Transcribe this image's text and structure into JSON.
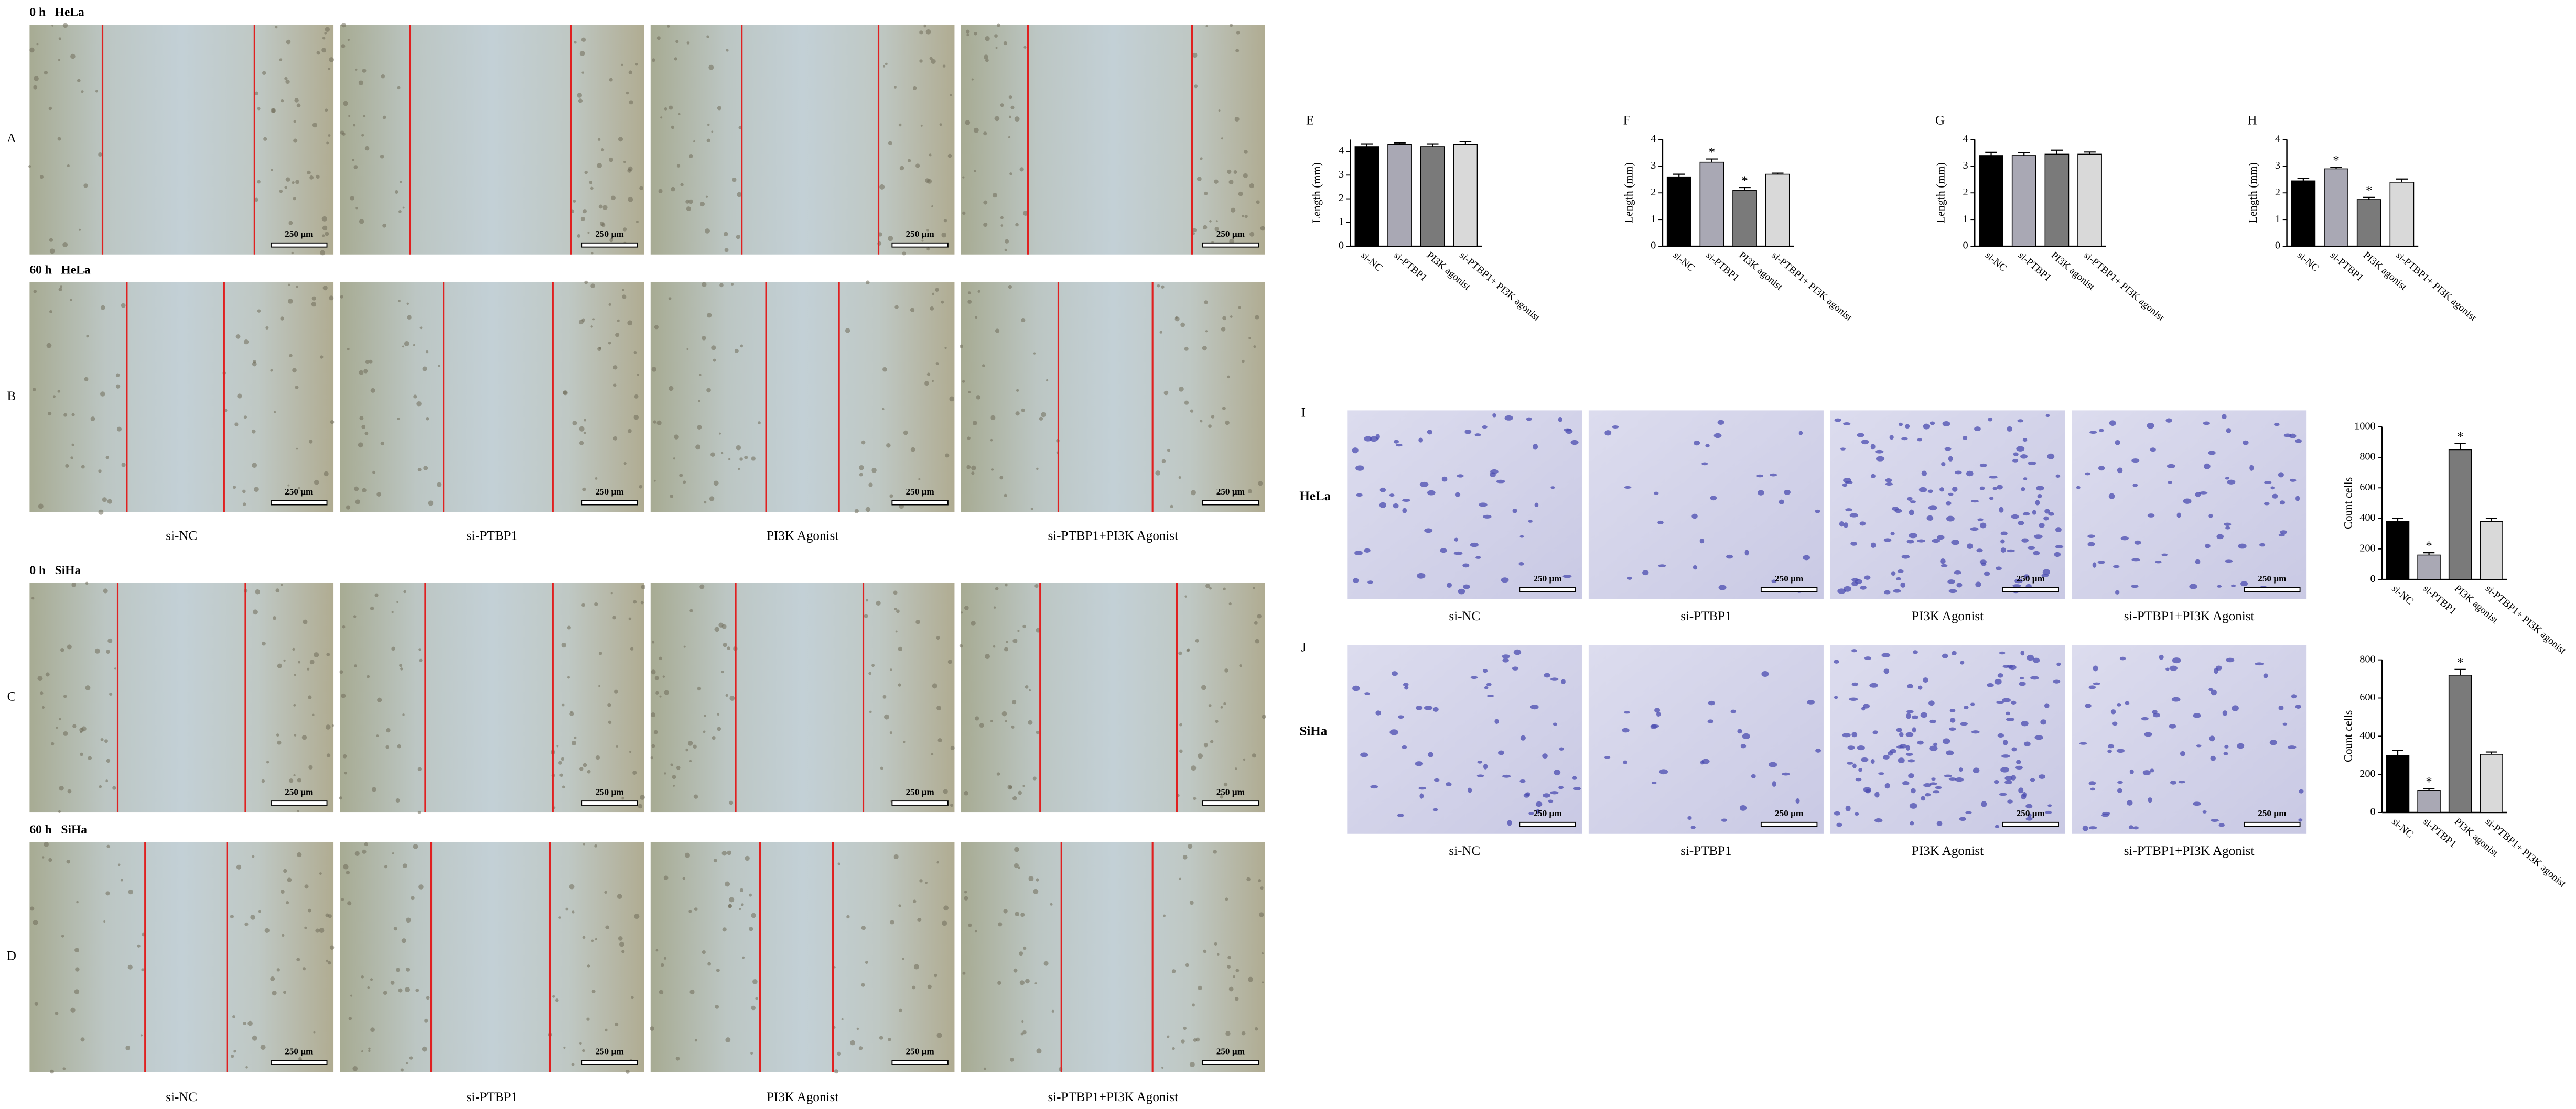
{
  "wound_healing": {
    "rows": [
      {
        "letter": "A",
        "title": "0 h   HeLa"
      },
      {
        "letter": "B",
        "title": "60 h   HeLa"
      },
      {
        "letter": "C",
        "title": "0 h   SiHa"
      },
      {
        "letter": "D",
        "title": "60 h   SiHa"
      }
    ],
    "conditions": [
      "si-NC",
      "si-PTBP1",
      "PI3K Agonist",
      "si-PTBP1+PI3K Agonist"
    ]
  },
  "transwell": {
    "rows": [
      {
        "letter": "I",
        "cell_line": "HeLa"
      },
      {
        "letter": "J",
        "cell_line": "SiHa"
      }
    ],
    "conditions": [
      "si-NC",
      "si-PTBP1",
      "PI3K Agonist",
      "si-PTBP1+PI3K Agonist"
    ]
  },
  "scale_bar": "250 μm",
  "chart_data": [
    {
      "type": "bar",
      "label": "E",
      "y_label": "Length (mm)",
      "categories": [
        "si-NC",
        "si-PTBP1",
        "PI3K agonist",
        "si-PTBP1+ PI3K agonist"
      ],
      "values": [
        4.2,
        4.3,
        4.2,
        4.3
      ],
      "errors": [
        0.12,
        0.06,
        0.12,
        0.1
      ],
      "significance": [
        null,
        null,
        null,
        null
      ],
      "colors": [
        "#000000",
        "#a9a8b4",
        "#7a7a7a",
        "#d9d9d9"
      ],
      "ylim": [
        0,
        4.5
      ],
      "yticks": [
        0,
        1,
        2,
        3,
        4
      ]
    },
    {
      "type": "bar",
      "label": "F",
      "y_label": "Length (mm)",
      "categories": [
        "si-NC",
        "si-PTBP1",
        "PI3K agonist",
        "si-PTBP1+ PI3K agonist"
      ],
      "values": [
        2.6,
        3.15,
        2.1,
        2.7
      ],
      "errors": [
        0.1,
        0.12,
        0.1,
        0.04
      ],
      "significance": [
        null,
        "*",
        "*",
        null
      ],
      "colors": [
        "#000000",
        "#a9a8b4",
        "#7a7a7a",
        "#d9d9d9"
      ],
      "ylim": [
        0,
        4
      ],
      "yticks": [
        0,
        1,
        2,
        3,
        4
      ]
    },
    {
      "type": "bar",
      "label": "G",
      "y_label": "Length (mm)",
      "categories": [
        "si-NC",
        "si-PTBP1",
        "PI3K agonist",
        "si-PTBP1+ PI3K agonist"
      ],
      "values": [
        3.4,
        3.4,
        3.45,
        3.45
      ],
      "errors": [
        0.12,
        0.1,
        0.15,
        0.08
      ],
      "significance": [
        null,
        null,
        null,
        null
      ],
      "colors": [
        "#000000",
        "#a9a8b4",
        "#7a7a7a",
        "#d9d9d9"
      ],
      "ylim": [
        0,
        4
      ],
      "yticks": [
        0,
        1,
        2,
        3,
        4
      ]
    },
    {
      "type": "bar",
      "label": "H",
      "y_label": "Length (mm)",
      "categories": [
        "si-NC",
        "si-PTBP1",
        "PI3K agonist",
        "si-PTBP1+ PI3K agonist"
      ],
      "values": [
        2.45,
        2.9,
        1.75,
        2.4
      ],
      "errors": [
        0.1,
        0.06,
        0.08,
        0.12
      ],
      "significance": [
        null,
        "*",
        "*",
        null
      ],
      "colors": [
        "#000000",
        "#a9a8b4",
        "#7a7a7a",
        "#d9d9d9"
      ],
      "ylim": [
        0,
        4
      ],
      "yticks": [
        0,
        1,
        2,
        3,
        4
      ]
    },
    {
      "type": "bar",
      "y_label": "Count cells",
      "categories": [
        "si-NC",
        "si-PTBP1",
        "PI3K agonist",
        "si-PTBP1+ PI3K agonist"
      ],
      "values": [
        380,
        160,
        850,
        380
      ],
      "errors": [
        20,
        15,
        40,
        20
      ],
      "significance": [
        null,
        "*",
        "*",
        null
      ],
      "colors": [
        "#000000",
        "#a9a8b4",
        "#7a7a7a",
        "#d9d9d9"
      ],
      "ylim": [
        0,
        1000
      ],
      "yticks": [
        0,
        200,
        400,
        600,
        800,
        1000
      ]
    },
    {
      "type": "bar",
      "y_label": "Count cells",
      "categories": [
        "si-NC",
        "si-PTBP1",
        "PI3K agonist",
        "si-PTBP1+ PI3K agonist"
      ],
      "values": [
        300,
        115,
        720,
        305
      ],
      "errors": [
        25,
        10,
        30,
        12
      ],
      "significance": [
        null,
        "*",
        "*",
        null
      ],
      "colors": [
        "#000000",
        "#a9a8b4",
        "#7a7a7a",
        "#d9d9d9"
      ],
      "ylim": [
        0,
        800
      ],
      "yticks": [
        0,
        200,
        400,
        600,
        800
      ]
    }
  ]
}
